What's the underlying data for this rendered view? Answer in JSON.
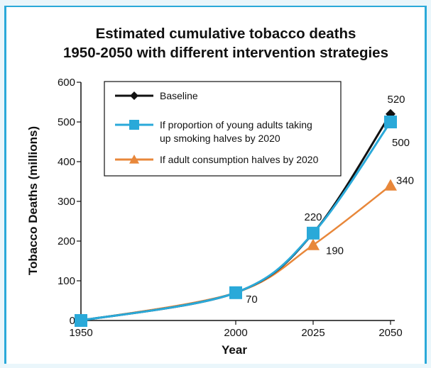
{
  "chart_data": {
    "type": "line",
    "title_line1": "Estimated cumulative tobacco deaths",
    "title_line2": "1950-2050 with different intervention strategies",
    "xlabel": "Year",
    "ylabel": "Tobacco Deaths (millions)",
    "x": [
      1950,
      2000,
      2025,
      2050
    ],
    "x_tick_labels": [
      "1950",
      "2000",
      "2025",
      "2050"
    ],
    "y_ticks": [
      0,
      100,
      200,
      300,
      400,
      500,
      600
    ],
    "y_tick_labels": [
      "0",
      "100",
      "200",
      "300",
      "400",
      "500",
      "600"
    ],
    "ylim": [
      0,
      600
    ],
    "grid": false,
    "legend_position": "top-left",
    "series": [
      {
        "name": "Baseline",
        "values": [
          0,
          70,
          220,
          520
        ],
        "color": "#111111",
        "marker": "diamond",
        "legend_lines": [
          "Baseline"
        ]
      },
      {
        "name": "If proportion of young adults taking up smoking halves by 2020",
        "values": [
          0,
          70,
          220,
          500
        ],
        "color": "#2aa9d9",
        "marker": "square",
        "legend_lines": [
          "If proportion of young adults taking",
          "up smoking halves by 2020"
        ]
      },
      {
        "name": "If adult consumption halves by 2020",
        "values": [
          0,
          70,
          190,
          340
        ],
        "color": "#e8873a",
        "marker": "triangle",
        "legend_lines": [
          "If adult consumption halves by 2020"
        ]
      }
    ],
    "annotations": [
      {
        "text": "70",
        "x": 2000,
        "y": 70,
        "anchor": "right"
      },
      {
        "text": "220",
        "x": 2025,
        "y": 220,
        "anchor": "above"
      },
      {
        "text": "190",
        "x": 2025,
        "y": 190,
        "anchor": "right"
      },
      {
        "text": "520",
        "x": 2050,
        "y": 520,
        "anchor": "above"
      },
      {
        "text": "500",
        "x": 2050,
        "y": 500,
        "anchor": "below-right"
      },
      {
        "text": "340",
        "x": 2050,
        "y": 340,
        "anchor": "right"
      }
    ]
  }
}
